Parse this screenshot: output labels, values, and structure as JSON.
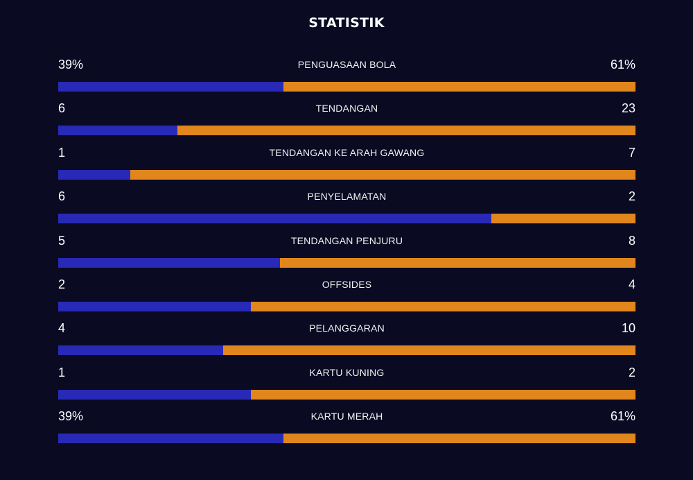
{
  "header": {
    "title": "STATISTIK"
  },
  "colors": {
    "background": "#0a0a23",
    "home": "#2929b8",
    "away": "#e0861c"
  },
  "chart_data": {
    "type": "bar",
    "orientation": "horizontal-stacked-share",
    "title": "STATISTIK",
    "categories": [
      "PENGUASAAN BOLA",
      "TENDANGAN",
      "TENDANGAN KE ARAH GAWANG",
      "PENYELAMATAN",
      "TENDANGAN PENJURU",
      "OFFSIDES",
      "PELANGGARAN",
      "KARTU KUNING",
      "KARTU MERAH"
    ],
    "rows": [
      {
        "label": "PENGUASAAN BOLA",
        "left": "39%",
        "right": "61%",
        "left_value": 39,
        "right_value": 61
      },
      {
        "label": "TENDANGAN",
        "left": "6",
        "right": "23",
        "left_value": 6,
        "right_value": 23
      },
      {
        "label": "TENDANGAN KE ARAH GAWANG",
        "left": "1",
        "right": "7",
        "left_value": 1,
        "right_value": 7
      },
      {
        "label": "PENYELAMATAN",
        "left": "6",
        "right": "2",
        "left_value": 6,
        "right_value": 2
      },
      {
        "label": "TENDANGAN PENJURU",
        "left": "5",
        "right": "8",
        "left_value": 5,
        "right_value": 8
      },
      {
        "label": "OFFSIDES",
        "left": "2",
        "right": "4",
        "left_value": 2,
        "right_value": 4
      },
      {
        "label": "PELANGGARAN",
        "left": "4",
        "right": "10",
        "left_value": 4,
        "right_value": 10
      },
      {
        "label": "KARTU KUNING",
        "left": "1",
        "right": "2",
        "left_value": 1,
        "right_value": 2
      },
      {
        "label": "KARTU MERAH",
        "left": "39%",
        "right": "61%",
        "left_value": 39,
        "right_value": 61
      }
    ]
  }
}
